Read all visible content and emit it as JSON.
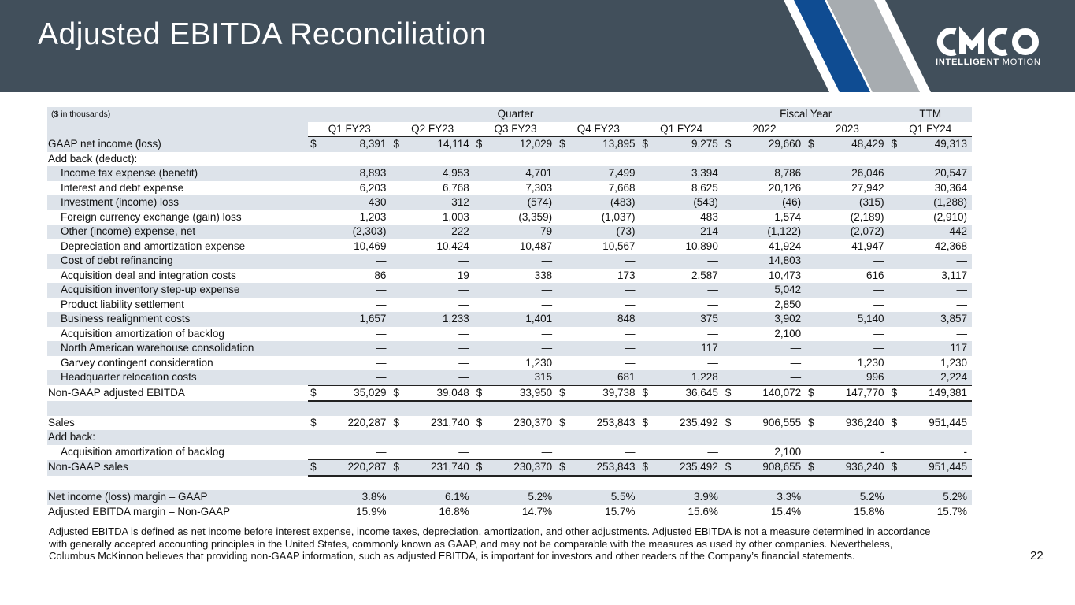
{
  "header": {
    "title": "Adjusted EBITDA Reconciliation"
  },
  "logo": {
    "text_bold": "INTELLIGENT",
    "text_light": "MOTION",
    "brand_letters": "CMCO"
  },
  "colors": {
    "header_bg": "#414f5b",
    "row_shade": "#dde3ea",
    "stripe_blue": "#0f4c92",
    "stripe_gray": "#a7acb0"
  },
  "table": {
    "units_note": "($ in thousands)",
    "groups": {
      "quarter": "Quarter",
      "fiscal_year": "Fiscal Year",
      "ttm": "TTM"
    },
    "columns": [
      "Q1 FY23",
      "Q2 FY23",
      "Q3 FY23",
      "Q4 FY23",
      "Q1 FY24",
      "2022",
      "2023",
      "Q1 FY24"
    ],
    "rows": [
      {
        "label": "GAAP net income (loss)",
        "dollar": "$",
        "values": [
          "8,391",
          "14,114",
          "12,029",
          "13,895",
          "9,275",
          "29,660",
          "48,429",
          "49,313"
        ]
      },
      {
        "label": "Add back (deduct):",
        "values": [
          "",
          "",
          "",
          "",
          "",
          "",
          "",
          ""
        ]
      },
      {
        "label": "Income tax expense (benefit)",
        "values": [
          "8,893",
          "4,953",
          "4,701",
          "7,499",
          "3,394",
          "8,786",
          "26,046",
          "20,547"
        ]
      },
      {
        "label": "Interest and debt expense",
        "values": [
          "6,203",
          "6,768",
          "7,303",
          "7,668",
          "8,625",
          "20,126",
          "27,942",
          "30,364"
        ]
      },
      {
        "label": "Investment (income) loss",
        "values": [
          "430",
          "312",
          "(574)",
          "(483)",
          "(543)",
          "(46)",
          "(315)",
          "(1,288)"
        ]
      },
      {
        "label": "Foreign currency exchange (gain) loss",
        "values": [
          "1,203",
          "1,003",
          "(3,359)",
          "(1,037)",
          "483",
          "1,574",
          "(2,189)",
          "(2,910)"
        ]
      },
      {
        "label": "Other (income) expense, net",
        "values": [
          "(2,303)",
          "222",
          "79",
          "(73)",
          "214",
          "(1,122)",
          "(2,072)",
          "442"
        ]
      },
      {
        "label": "Depreciation and amortization expense",
        "values": [
          "10,469",
          "10,424",
          "10,487",
          "10,567",
          "10,890",
          "41,924",
          "41,947",
          "42,368"
        ]
      },
      {
        "label": "Cost of debt refinancing",
        "values": [
          "—",
          "—",
          "—",
          "—",
          "—",
          "14,803",
          "—",
          "—"
        ]
      },
      {
        "label": "Acquisition deal and integration costs",
        "values": [
          "86",
          "19",
          "338",
          "173",
          "2,587",
          "10,473",
          "616",
          "3,117"
        ]
      },
      {
        "label": "Acquisition inventory step-up expense",
        "values": [
          "—",
          "—",
          "—",
          "—",
          "—",
          "5,042",
          "—",
          "—"
        ]
      },
      {
        "label": "Product liability settlement",
        "values": [
          "—",
          "—",
          "—",
          "—",
          "—",
          "2,850",
          "—",
          "—"
        ]
      },
      {
        "label": "Business realignment costs",
        "values": [
          "1,657",
          "1,233",
          "1,401",
          "848",
          "375",
          "3,902",
          "5,140",
          "3,857"
        ]
      },
      {
        "label": "Acquisition amortization of backlog",
        "values": [
          "—",
          "—",
          "—",
          "—",
          "—",
          "2,100",
          "—",
          "—"
        ]
      },
      {
        "label": "North American warehouse consolidation",
        "values": [
          "—",
          "—",
          "—",
          "—",
          "117",
          "—",
          "—",
          "117"
        ]
      },
      {
        "label": "Garvey contingent consideration",
        "values": [
          "—",
          "—",
          "1,230",
          "—",
          "—",
          "—",
          "1,230",
          "1,230"
        ]
      },
      {
        "label": "Headquarter relocation costs",
        "values": [
          "—",
          "—",
          "315",
          "681",
          "1,228",
          "—",
          "996",
          "2,224"
        ]
      },
      {
        "label": "Non-GAAP adjusted EBITDA",
        "dollar": "$",
        "values": [
          "35,029",
          "39,048",
          "33,950",
          "39,738",
          "36,645",
          "140,072",
          "147,770",
          "149,381"
        ]
      },
      {
        "label": "",
        "values": [
          "",
          "",
          "",
          "",
          "",
          "",
          "",
          ""
        ]
      },
      {
        "label": "Sales",
        "dollar": "$",
        "values": [
          "220,287",
          "231,740",
          "230,370",
          "253,843",
          "235,492",
          "906,555",
          "936,240",
          "951,445"
        ]
      },
      {
        "label": "Add back:",
        "values": [
          "",
          "",
          "",
          "",
          "",
          "",
          "",
          ""
        ]
      },
      {
        "label": "Acquisition amortization of backlog",
        "values": [
          "—",
          "—",
          "—",
          "—",
          "—",
          "2,100",
          "-",
          "-"
        ]
      },
      {
        "label": "Non-GAAP sales",
        "dollar": "$",
        "values": [
          "220,287",
          "231,740",
          "230,370",
          "253,843",
          "235,492",
          "908,655",
          "936,240",
          "951,445"
        ]
      },
      {
        "label": "",
        "values": [
          "",
          "",
          "",
          "",
          "",
          "",
          "",
          ""
        ]
      },
      {
        "label": "Net income (loss) margin – GAAP",
        "values": [
          "3.8%",
          "6.1%",
          "5.2%",
          "5.5%",
          "3.9%",
          "3.3%",
          "5.2%",
          "5.2%"
        ]
      },
      {
        "label": "Adjusted EBITDA margin – Non-GAAP",
        "values": [
          "15.9%",
          "16.8%",
          "14.7%",
          "15.7%",
          "15.6%",
          "15.4%",
          "15.8%",
          "15.7%"
        ]
      }
    ]
  },
  "footnote": "Adjusted EBITDA is defined as net income before interest expense, income taxes, depreciation, amortization, and other adjustments.  Adjusted EBITDA is not a measure determined in accordance with generally accepted accounting principles in the United States, commonly known as GAAP, and may not be comparable with the measures as used by other companies.  Nevertheless, Columbus McKinnon believes that providing non-GAAP information, such as adjusted EBITDA, is important for investors and other readers of the Company’s financial statements.",
  "page_number": "22"
}
